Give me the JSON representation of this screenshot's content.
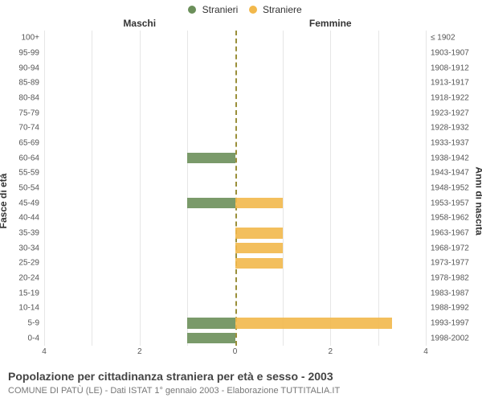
{
  "chart": {
    "type": "population-pyramid",
    "background_color": "#ffffff",
    "grid_color": "#e6e6e6",
    "center_line_color": "#9a8f3a",
    "legend": [
      {
        "label": "Stranieri",
        "color": "#6b8f5a"
      },
      {
        "label": "Straniere",
        "color": "#f2b84b"
      }
    ],
    "header_left": "Maschi",
    "header_right": "Femmine",
    "yaxis_title_left": "Fasce di età",
    "yaxis_title_right": "Anni di nascita",
    "label_fontsize": 10,
    "title_fontsize": 14,
    "x_max": 4,
    "x_ticks": [
      4,
      2,
      0,
      2,
      4
    ],
    "bar_width_ratio": 0.7,
    "rows": [
      {
        "age": "100+",
        "birth": "≤ 1902",
        "m": 0,
        "f": 0
      },
      {
        "age": "95-99",
        "birth": "1903-1907",
        "m": 0,
        "f": 0
      },
      {
        "age": "90-94",
        "birth": "1908-1912",
        "m": 0,
        "f": 0
      },
      {
        "age": "85-89",
        "birth": "1913-1917",
        "m": 0,
        "f": 0
      },
      {
        "age": "80-84",
        "birth": "1918-1922",
        "m": 0,
        "f": 0
      },
      {
        "age": "75-79",
        "birth": "1923-1927",
        "m": 0,
        "f": 0
      },
      {
        "age": "70-74",
        "birth": "1928-1932",
        "m": 0,
        "f": 0
      },
      {
        "age": "65-69",
        "birth": "1933-1937",
        "m": 0,
        "f": 0
      },
      {
        "age": "60-64",
        "birth": "1938-1942",
        "m": 1,
        "f": 0
      },
      {
        "age": "55-59",
        "birth": "1943-1947",
        "m": 0,
        "f": 0
      },
      {
        "age": "50-54",
        "birth": "1948-1952",
        "m": 0,
        "f": 0
      },
      {
        "age": "45-49",
        "birth": "1953-1957",
        "m": 1,
        "f": 1
      },
      {
        "age": "40-44",
        "birth": "1958-1962",
        "m": 0,
        "f": 0
      },
      {
        "age": "35-39",
        "birth": "1963-1967",
        "m": 0,
        "f": 1
      },
      {
        "age": "30-34",
        "birth": "1968-1972",
        "m": 0,
        "f": 1
      },
      {
        "age": "25-29",
        "birth": "1973-1977",
        "m": 0,
        "f": 1
      },
      {
        "age": "20-24",
        "birth": "1978-1982",
        "m": 0,
        "f": 0
      },
      {
        "age": "15-19",
        "birth": "1983-1987",
        "m": 0,
        "f": 0
      },
      {
        "age": "10-14",
        "birth": "1988-1992",
        "m": 0,
        "f": 0
      },
      {
        "age": "5-9",
        "birth": "1993-1997",
        "m": 1,
        "f": 3.3
      },
      {
        "age": "0-4",
        "birth": "1998-2002",
        "m": 1,
        "f": 0
      }
    ],
    "colors": {
      "male": "#6b8f5a",
      "female": "#f2b84b"
    }
  },
  "title_main": "Popolazione per cittadinanza straniera per età e sesso - 2003",
  "title_sub": "COMUNE DI PATÙ (LE) - Dati ISTAT 1° gennaio 2003 - Elaborazione TUTTITALIA.IT"
}
